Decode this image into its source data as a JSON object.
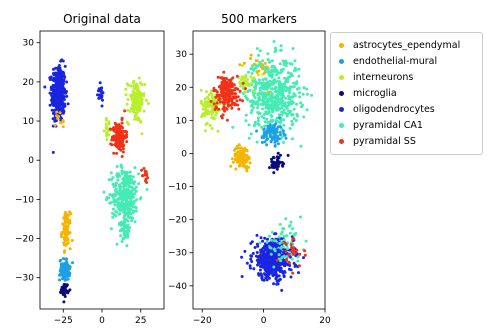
{
  "colors": {
    "astrocytes_ependymal": "#f5b400",
    "endothelial-mural": "#1e9fe6",
    "interneurons": "#b8ef2a",
    "microglia": "#0b0b80",
    "oligodendrocytes": "#1a25e0",
    "pyramidal CA1": "#44ecb4",
    "pyramidal SS": "#ef3218"
  },
  "chart_data": [
    {
      "type": "scatter",
      "title": "Original data",
      "xlim": [
        -40,
        40
      ],
      "ylim": [
        -38,
        33
      ],
      "xticks": [
        -25,
        0,
        25
      ],
      "yticks": [
        -30,
        -20,
        -10,
        0,
        10,
        20,
        30
      ],
      "grid": false,
      "clusters": [
        {
          "series": "oligodendrocytes",
          "center": [
            -28,
            17
          ],
          "spread": [
            4,
            6.5
          ],
          "n": 380
        },
        {
          "series": "oligodendrocytes",
          "center": [
            -1,
            17
          ],
          "spread": [
            2,
            2
          ],
          "n": 25
        },
        {
          "series": "astrocytes_ependymal",
          "center": [
            -23,
            -18
          ],
          "spread": [
            2.5,
            4
          ],
          "n": 90
        },
        {
          "series": "astrocytes_ependymal",
          "center": [
            -27,
            10
          ],
          "spread": [
            4,
            3
          ],
          "n": 12
        },
        {
          "series": "endothelial-mural",
          "center": [
            -24,
            -28
          ],
          "spread": [
            3,
            2.5
          ],
          "n": 90
        },
        {
          "series": "microglia",
          "center": [
            -24,
            -33
          ],
          "spread": [
            2,
            1.5
          ],
          "n": 40
        },
        {
          "series": "interneurons",
          "center": [
            22,
            15
          ],
          "spread": [
            5,
            5
          ],
          "n": 120
        },
        {
          "series": "interneurons",
          "center": [
            4,
            8
          ],
          "spread": [
            2,
            2
          ],
          "n": 20
        },
        {
          "series": "pyramidal SS",
          "center": [
            11,
            6
          ],
          "spread": [
            4,
            3.5
          ],
          "n": 140
        },
        {
          "series": "pyramidal SS",
          "center": [
            28,
            -4
          ],
          "spread": [
            2,
            2
          ],
          "n": 15
        },
        {
          "series": "pyramidal CA1",
          "center": [
            15,
            -9
          ],
          "spread": [
            8,
            6.5
          ],
          "n": 320
        },
        {
          "series": "pyramidal CA1",
          "center": [
            15,
            -18
          ],
          "spread": [
            3,
            3
          ],
          "n": 40
        }
      ]
    },
    {
      "type": "scatter",
      "title": "500 markers",
      "xlim": [
        -23,
        20
      ],
      "ylim": [
        -47,
        37
      ],
      "xticks": [
        -20,
        0,
        20
      ],
      "yticks": [
        -40,
        -30,
        -20,
        -10,
        0,
        10,
        20,
        30
      ],
      "grid": false,
      "clusters": [
        {
          "series": "pyramidal CA1",
          "center": [
            3,
            18
          ],
          "spread": [
            8,
            10
          ],
          "n": 520
        },
        {
          "series": "interneurons",
          "center": [
            -17,
            14
          ],
          "spread": [
            3,
            5
          ],
          "n": 110
        },
        {
          "series": "interneurons",
          "center": [
            -5,
            22
          ],
          "spread": [
            3,
            3
          ],
          "n": 30
        },
        {
          "series": "pyramidal SS",
          "center": [
            -12,
            18
          ],
          "spread": [
            4,
            5
          ],
          "n": 180
        },
        {
          "series": "astrocytes_ependymal",
          "center": [
            -7,
            -1
          ],
          "spread": [
            2.5,
            3
          ],
          "n": 90
        },
        {
          "series": "endothelial-mural",
          "center": [
            3,
            6
          ],
          "spread": [
            3,
            3
          ],
          "n": 90
        },
        {
          "series": "microglia",
          "center": [
            4,
            -3
          ],
          "spread": [
            2,
            2
          ],
          "n": 45
        },
        {
          "series": "oligodendrocytes",
          "center": [
            3,
            -32
          ],
          "spread": [
            6,
            5.5
          ],
          "n": 450
        },
        {
          "series": "pyramidal CA1",
          "center": [
            6,
            -27
          ],
          "spread": [
            6,
            5
          ],
          "n": 60
        },
        {
          "series": "pyramidal SS",
          "center": [
            10,
            -30
          ],
          "spread": [
            4,
            4
          ],
          "n": 25
        },
        {
          "series": "astrocytes_ependymal",
          "center": [
            -3,
            26
          ],
          "spread": [
            5,
            4
          ],
          "n": 15
        }
      ]
    }
  ],
  "legend": {
    "placement": "right",
    "entries": [
      "astrocytes_ependymal",
      "endothelial-mural",
      "interneurons",
      "microglia",
      "oligodendrocytes",
      "pyramidal CA1",
      "pyramidal SS"
    ]
  }
}
